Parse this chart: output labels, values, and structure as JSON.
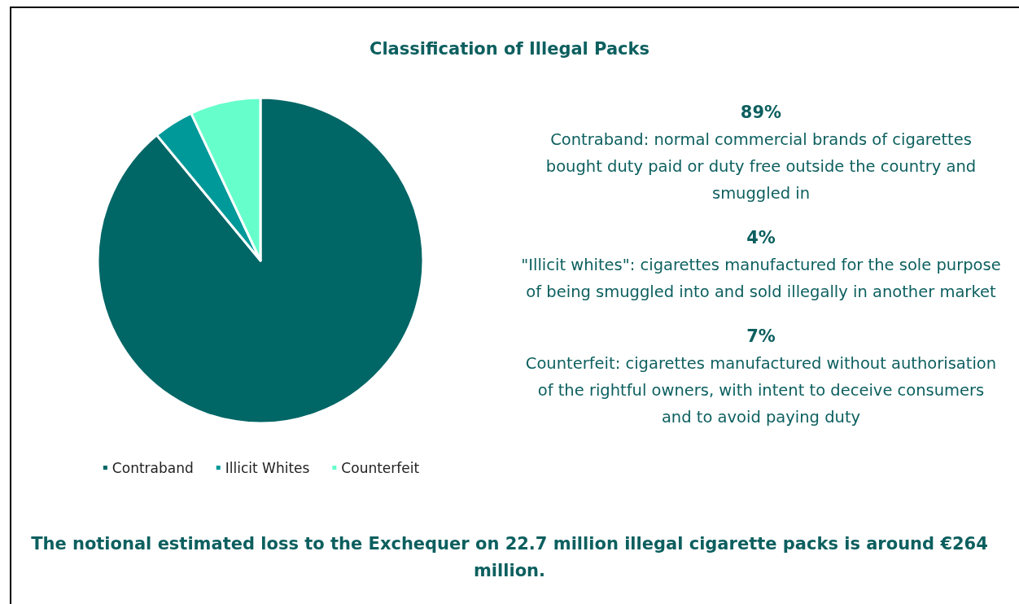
{
  "chart_data": {
    "type": "pie",
    "title": "Classification of Illegal Packs",
    "categories": [
      "Contraband",
      "Illicit Whites",
      "Counterfeit"
    ],
    "values": [
      89,
      4,
      7
    ],
    "colors": [
      "#006666",
      "#009999",
      "#66ffcc"
    ],
    "legend": "bottom",
    "annotations": [
      "89%",
      "Contraband: normal commercial brands of cigarettes bought duty paid or duty free outside the country and smuggled in",
      "4%",
      "\"Illicit whites\": cigarettes manufactured for the sole purpose of being smuggled into and sold illegally in another market",
      "7%",
      "Counterfeit: cigarettes manufactured without authorisation of the rightful owners, with intent to deceive consumers and to avoid paying duty",
      "The notional estimated loss to the Exchequer on 22.7 million illegal cigarette packs is around €264 million."
    ]
  }
}
